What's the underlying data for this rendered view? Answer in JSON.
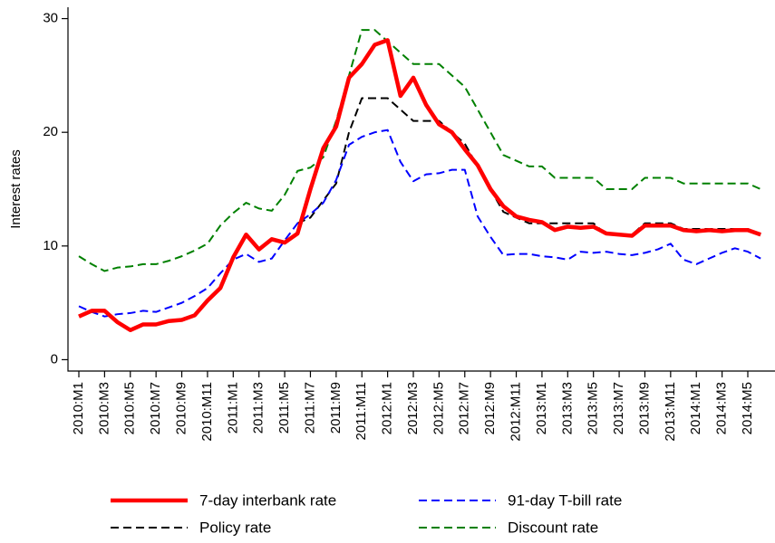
{
  "chart_data": {
    "type": "line",
    "y_label": "Interest rates",
    "categories": [
      "2010:M1",
      null,
      "2010:M3",
      null,
      "2010:M5",
      null,
      "2010:M7",
      null,
      "2010:M9",
      null,
      "2010:M11",
      null,
      "2011:M1",
      null,
      "2011:M3",
      null,
      "2011:M5",
      null,
      "2011:M7",
      null,
      "2011:M9",
      null,
      "2011:M11",
      null,
      "2012:M1",
      null,
      "2012:M3",
      null,
      "2012:M5",
      null,
      "2012:M7",
      null,
      "2012:M9",
      null,
      "2012:M11",
      null,
      "2013:M1",
      null,
      "2013:M3",
      null,
      "2013:M5",
      null,
      "2013:M7",
      null,
      "2013:M9",
      null,
      "2013:M11",
      null,
      "2014:M1",
      null,
      "2014:M3",
      null,
      "2014:M5",
      null
    ],
    "ylim": [
      -1,
      31
    ],
    "yticks": [
      0,
      10,
      20,
      30
    ],
    "legend": "bottom",
    "series": [
      {
        "name": "7-day interbank rate",
        "color": "#ff0000",
        "style": "solid",
        "values": [
          3.8,
          4.3,
          4.3,
          3.3,
          2.6,
          3.1,
          3.1,
          3.4,
          3.5,
          3.9,
          5.2,
          6.3,
          9.0,
          11.0,
          9.7,
          10.6,
          10.3,
          11.1,
          15.0,
          18.6,
          20.5,
          24.8,
          26.0,
          27.7,
          28.1,
          23.2,
          24.8,
          22.4,
          20.7,
          20.0,
          18.5,
          17.1,
          15.0,
          13.5,
          12.6,
          12.3,
          12.1,
          11.4,
          11.7,
          11.6,
          11.7,
          11.1,
          11.0,
          10.9,
          11.8,
          11.8,
          11.8,
          11.4,
          11.3,
          11.4,
          11.3,
          11.4,
          11.4,
          11.0
        ]
      },
      {
        "name": "91-day T-bill rate",
        "color": "#0000ff",
        "style": "dashed",
        "values": [
          4.7,
          4.2,
          3.8,
          4.0,
          4.1,
          4.3,
          4.2,
          4.6,
          5.0,
          5.6,
          6.3,
          7.6,
          8.8,
          9.3,
          8.6,
          8.9,
          10.5,
          12.0,
          12.8,
          13.8,
          15.8,
          18.9,
          19.6,
          20.0,
          20.2,
          17.4,
          15.7,
          16.3,
          16.4,
          16.7,
          16.7,
          12.6,
          10.8,
          9.2,
          9.3,
          9.3,
          9.1,
          9.0,
          8.8,
          9.5,
          9.4,
          9.5,
          9.3,
          9.2,
          9.4,
          9.7,
          10.2,
          8.8,
          8.4,
          8.9,
          9.4,
          9.8,
          9.5,
          8.9
        ]
      },
      {
        "name": "Policy rate",
        "color": "#000000",
        "style": "dashed",
        "values": [
          null,
          null,
          null,
          null,
          null,
          null,
          null,
          null,
          null,
          null,
          null,
          null,
          null,
          null,
          null,
          null,
          null,
          12,
          12.5,
          14,
          15.5,
          20,
          23,
          23,
          23,
          22,
          21,
          21,
          21,
          20,
          19,
          17,
          15,
          13,
          12.5,
          12,
          12,
          12,
          12,
          12,
          12,
          11,
          11,
          11,
          12,
          12,
          12,
          11.5,
          11.5,
          11.5,
          11.5,
          11.5,
          11.5,
          11
        ]
      },
      {
        "name": "Discount rate",
        "color": "#008000",
        "style": "dashed",
        "values": [
          9.1,
          8.4,
          7.8,
          8.1,
          8.2,
          8.4,
          8.4,
          8.7,
          9.1,
          9.6,
          10.2,
          11.8,
          12.9,
          13.8,
          13.3,
          13.1,
          14.5,
          16.6,
          16.9,
          17.8,
          21.0,
          25.0,
          29.0,
          29.0,
          28.0,
          27.0,
          26.0,
          26.0,
          26.0,
          25.0,
          24.0,
          22.0,
          20.0,
          18.0,
          17.5,
          17.0,
          17.0,
          16.0,
          16.0,
          16.0,
          16.0,
          15.0,
          15.0,
          15.0,
          16.0,
          16.0,
          16.0,
          15.5,
          15.5,
          15.5,
          15.5,
          15.5,
          15.5,
          15.0
        ]
      }
    ]
  }
}
